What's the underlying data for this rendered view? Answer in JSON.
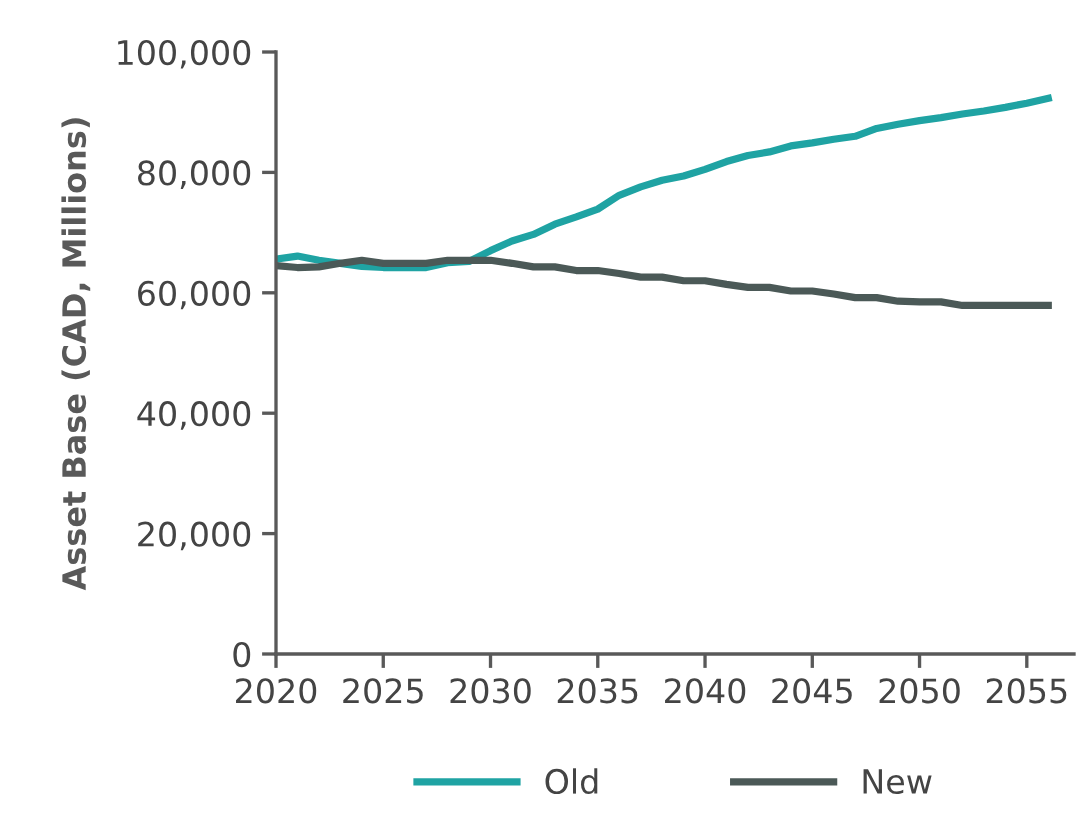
{
  "chart_data": {
    "type": "line",
    "ylabel": "Asset Base (CAD, Millions)",
    "x": [
      2020,
      2021,
      2022,
      2023,
      2024,
      2025,
      2026,
      2027,
      2028,
      2029,
      2030,
      2031,
      2032,
      2033,
      2034,
      2035,
      2036,
      2037,
      2038,
      2039,
      2040,
      2041,
      2042,
      2043,
      2044,
      2045,
      2046,
      2047,
      2048,
      2049,
      2050,
      2051,
      2052,
      2053,
      2054,
      2055,
      2056
    ],
    "series": [
      {
        "name": "Old",
        "color": "#1fa3a3",
        "values": [
          65600,
          66100,
          65400,
          64900,
          64400,
          64200,
          64200,
          64200,
          65000,
          65200,
          67000,
          68600,
          69700,
          71400,
          72600,
          73900,
          76200,
          77600,
          78700,
          79400,
          80500,
          81800,
          82800,
          83400,
          84400,
          84900,
          85500,
          86000,
          87300,
          88000,
          88600,
          89100,
          89700,
          90200,
          90800,
          91500,
          92300
        ]
      },
      {
        "name": "New",
        "color": "#4b5957",
        "values": [
          64500,
          64200,
          64300,
          64900,
          65400,
          64900,
          64900,
          64900,
          65400,
          65400,
          65400,
          64900,
          64300,
          64300,
          63700,
          63700,
          63200,
          62600,
          62600,
          62000,
          62000,
          61400,
          60900,
          60900,
          60300,
          60300,
          59800,
          59200,
          59200,
          58600,
          58500,
          58500,
          57900,
          57900,
          57900,
          57900,
          57900
        ]
      }
    ],
    "xlim": [
      2020,
      2057.2
    ],
    "xticks": [
      2020,
      2025,
      2030,
      2035,
      2040,
      2045,
      2050,
      2055
    ],
    "ylim": [
      0,
      100000
    ],
    "yticks": [
      {
        "value": 0,
        "label": "0"
      },
      {
        "value": 20000,
        "label": "20,000"
      },
      {
        "value": 40000,
        "label": "40,000"
      },
      {
        "value": 60000,
        "label": "60,000"
      },
      {
        "value": 80000,
        "label": "80,000"
      },
      {
        "value": 100000,
        "label": "100,000"
      }
    ],
    "grid": false,
    "legend": "bottom",
    "line_style": "solid",
    "marker": "none"
  }
}
